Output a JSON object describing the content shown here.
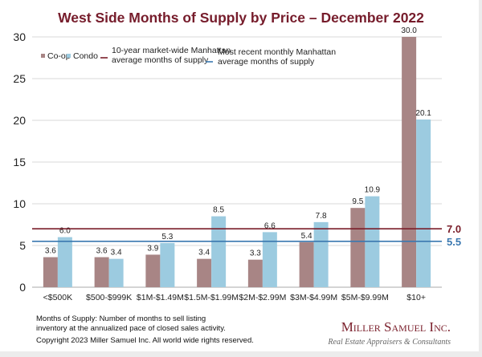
{
  "chart_data": {
    "type": "bar",
    "title": "West Side Months of Supply by Price – December 2022",
    "xlabel": "",
    "ylabel": "",
    "ylim": [
      0,
      30
    ],
    "yticks": [
      "0",
      "5",
      "10",
      "15",
      "20",
      "25",
      "30"
    ],
    "grid": true,
    "legend_placement": "top-left",
    "categories": [
      "<$500K",
      "$500-$999K",
      "$1M-$1.49M",
      "$1.5M-$1.99M",
      "$2M-$2.99M",
      "$3M-$4.99M",
      "$5M-$9.99M",
      "$10+"
    ],
    "series": [
      {
        "name": "Co-op",
        "color": "#a88585",
        "values": [
          3.6,
          3.6,
          3.9,
          3.4,
          3.3,
          5.4,
          9.5,
          30.0
        ],
        "labels": [
          "3.6",
          "3.6",
          "3.9",
          "3.4",
          "3.3",
          "5.4",
          "9.5",
          "30.0"
        ]
      },
      {
        "name": "Condo",
        "color": "#9ccbe0",
        "values": [
          6.0,
          3.4,
          5.3,
          8.5,
          6.6,
          7.8,
          10.9,
          20.1
        ],
        "labels": [
          "6.0",
          "3.4",
          "5.3",
          "8.5",
          "6.6",
          "7.8",
          "10.9",
          "20.1"
        ]
      }
    ],
    "reference_lines": [
      {
        "name": "10-year market-wide Manhattan average months of supply",
        "legend_lines": [
          "10-year market-wide Manhattan",
          "average months of supply"
        ],
        "value": 7.0,
        "label": "7.0",
        "color": "#7a1e2a"
      },
      {
        "name": "Most recent monthly Manhattan average months of supply",
        "legend_lines": [
          "Most recent monthly Manhattan",
          "average months of supply"
        ],
        "value": 5.5,
        "label": "5.5",
        "color": "#3a78b0"
      }
    ]
  },
  "footnote": {
    "line1": "Months of Supply: Number of months to sell listing",
    "line2": "inventory at the annualized pace of closed sales activity.",
    "copyright": "Copyright 2023 Miller Samuel Inc.  All world wide rights reserved."
  },
  "logo": {
    "name": "Miller Samuel Inc.",
    "tagline": "Real Estate Appraisers & Consultants"
  }
}
